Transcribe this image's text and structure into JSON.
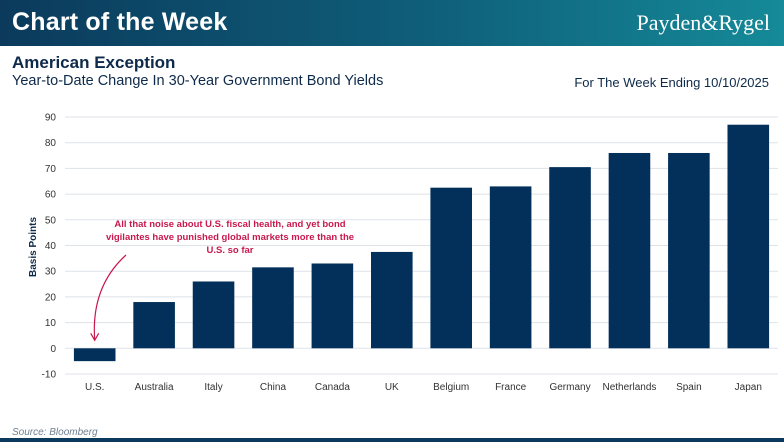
{
  "header": {
    "banner_title": "Chart of the Week",
    "brand": "Payden&Rygel",
    "title": "American Exception",
    "subtitle": "Year-to-Date Change In 30-Year Government Bond Yields",
    "week_label": "For The Week Ending 10/10/2025"
  },
  "source": "Source: Bloomberg",
  "colors": {
    "bar": "#03305a",
    "annotation": "#c8194e",
    "header_start": "#0b3a5c",
    "header_end": "#158a98"
  },
  "chart_data": {
    "type": "bar",
    "title": "Year-to-Date Change In 30-Year Government Bond Yields",
    "xlabel": "",
    "ylabel": "Basis Points",
    "ylim": [
      -10,
      90
    ],
    "yticks": [
      -10,
      0,
      10,
      20,
      30,
      40,
      50,
      60,
      70,
      80,
      90
    ],
    "grid": true,
    "categories": [
      "U.S.",
      "Australia",
      "Italy",
      "China",
      "Canada",
      "UK",
      "Belgium",
      "France",
      "Germany",
      "Netherlands",
      "Spain",
      "Japan"
    ],
    "values": [
      -5,
      18,
      26,
      31.5,
      33,
      37.5,
      62.5,
      63,
      70.5,
      76,
      76,
      87
    ],
    "annotation": {
      "text_lines": [
        "All that noise about U.S. fiscal health, and yet bond",
        "vigilantes have punished global markets more than the",
        "U.S. so far"
      ],
      "target_category": "U.S."
    }
  }
}
